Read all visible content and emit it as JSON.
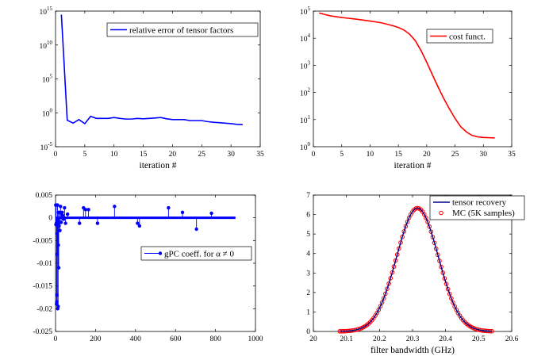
{
  "chart_data": [
    {
      "type": "line",
      "xlabel": "iteration #",
      "ylabel": "",
      "yscale": "log",
      "xlim": [
        0,
        35
      ],
      "ylim": [
        1e-05,
        1000000000000000.0
      ],
      "x_ticks": [
        "0",
        "5",
        "10",
        "15",
        "20",
        "25",
        "30",
        "35"
      ],
      "y_ticks": [
        {
          "base": "10",
          "exp": "-5"
        },
        {
          "base": "10",
          "exp": "0"
        },
        {
          "base": "10",
          "exp": "5"
        },
        {
          "base": "10",
          "exp": "10"
        },
        {
          "base": "10",
          "exp": "15"
        }
      ],
      "legend": {
        "position": "top-right",
        "label": "relative error of tensor factors"
      },
      "series": [
        {
          "name": "relative error of tensor factors",
          "color": "#0000ff",
          "x": [
            1,
            2,
            3,
            4,
            5,
            6,
            7,
            8,
            9,
            10,
            11,
            12,
            13,
            14,
            15,
            16,
            17,
            18,
            19,
            20,
            21,
            22,
            23,
            24,
            25,
            26,
            27,
            28,
            29,
            30,
            31,
            32
          ],
          "y": [
            300000000000000.0,
            0.08,
            0.03,
            0.1,
            0.025,
            0.3,
            0.15,
            0.15,
            0.15,
            0.2,
            0.15,
            0.12,
            0.12,
            0.15,
            0.13,
            0.15,
            0.17,
            0.2,
            0.13,
            0.1,
            0.1,
            0.1,
            0.07,
            0.07,
            0.07,
            0.05,
            0.04,
            0.035,
            0.03,
            0.025,
            0.02,
            0.018
          ]
        }
      ]
    },
    {
      "type": "line",
      "xlabel": "iteration #",
      "ylabel": "",
      "yscale": "log",
      "xlim": [
        0,
        35
      ],
      "ylim": [
        1,
        100000
      ],
      "x_ticks": [
        "0",
        "5",
        "10",
        "15",
        "20",
        "25",
        "30",
        "35"
      ],
      "y_ticks": [
        {
          "base": "10",
          "exp": "0"
        },
        {
          "base": "10",
          "exp": "1"
        },
        {
          "base": "10",
          "exp": "2"
        },
        {
          "base": "10",
          "exp": "3"
        },
        {
          "base": "10",
          "exp": "4"
        },
        {
          "base": "10",
          "exp": "5"
        }
      ],
      "legend": {
        "position": "top-right",
        "label": "cost funct."
      },
      "series": [
        {
          "name": "cost funct.",
          "color": "#ff0000",
          "x": [
            1,
            2,
            3,
            4,
            5,
            6,
            7,
            8,
            9,
            10,
            11,
            12,
            13,
            14,
            15,
            16,
            17,
            18,
            19,
            20,
            21,
            22,
            23,
            24,
            25,
            26,
            27,
            28,
            29,
            30,
            31,
            32
          ],
          "y": [
            85000,
            75000,
            67000,
            62000,
            58000,
            55000,
            52000,
            49000,
            46000,
            43000,
            40000,
            37000,
            33000,
            29000,
            25000,
            20000,
            14000,
            8000,
            3500,
            1300,
            450,
            160,
            60,
            25,
            11,
            5.5,
            3.5,
            2.6,
            2.3,
            2.2,
            2.15,
            2.1
          ]
        }
      ]
    },
    {
      "type": "scatter",
      "style": "stem",
      "xlabel": "",
      "ylabel": "",
      "xlim": [
        0,
        1000
      ],
      "ylim": [
        -0.025,
        0.005
      ],
      "x_ticks": [
        "0",
        "200",
        "400",
        "600",
        "800",
        "1000"
      ],
      "y_ticks": [
        "-0.025",
        "-0.02",
        "-0.015",
        "-0.01",
        "-0.005",
        "0",
        "0.005"
      ],
      "legend": {
        "position": "bottom-right",
        "label": "gPC coeff. for α ≠ 0"
      },
      "series": [
        {
          "name": "gPC coeff. for α ≠ 0",
          "color": "#0000ff",
          "x": [
            1,
            2,
            3,
            4,
            5,
            6,
            7,
            8,
            9,
            10,
            11,
            12,
            13,
            14,
            15,
            16,
            18,
            20,
            22,
            25,
            28,
            30,
            33,
            36,
            40,
            45,
            50,
            60,
            120,
            140,
            150,
            165,
            210,
            295,
            410,
            420,
            565,
            635,
            705,
            780
          ],
          "y": [
            0.0028,
            -0.0015,
            0.0028,
            -0.0012,
            -0.019,
            -0.0185,
            -0.017,
            -0.008,
            -0.0035,
            0.0028,
            -0.02,
            -0.0012,
            -0.0195,
            -0.006,
            0.0012,
            -0.011,
            -0.0018,
            0.0012,
            -0.0028,
            0.0025,
            -0.001,
            0.001,
            0.0012,
            0.0005,
            -0.0003,
            0.0022,
            -0.0012,
            0.0008,
            -0.0012,
            0.0022,
            0.0018,
            0.0018,
            -0.0012,
            0.0025,
            -0.0012,
            -0.0018,
            0.0022,
            0.0012,
            -0.0025,
            0.001
          ]
        }
      ]
    },
    {
      "type": "line",
      "xlabel": "filter bandwidth (GHz)",
      "ylabel": "",
      "xlim": [
        20,
        20.6
      ],
      "ylim": [
        0,
        7
      ],
      "x_ticks": [
        "20",
        "20.1",
        "20.2",
        "20.3",
        "20.4",
        "20.5",
        "20.6"
      ],
      "y_ticks": [
        "0",
        "1",
        "2",
        "3",
        "4",
        "5",
        "6",
        "7"
      ],
      "legend": {
        "position": "top-right",
        "labels": [
          "tensor recovery",
          "MC (5K samples)"
        ]
      },
      "series": [
        {
          "name": "tensor recovery",
          "color": "#00008b",
          "distribution": {
            "mean": 20.315,
            "std": 0.063,
            "peak": 6.33
          },
          "x_range": [
            20.08,
            20.54
          ]
        },
        {
          "name": "MC (5K samples)",
          "color": "#ff0000",
          "marker": "circle",
          "distribution": {
            "mean": 20.315,
            "std": 0.063,
            "peak": 6.33
          },
          "x_range": [
            20.08,
            20.54
          ]
        }
      ]
    }
  ]
}
